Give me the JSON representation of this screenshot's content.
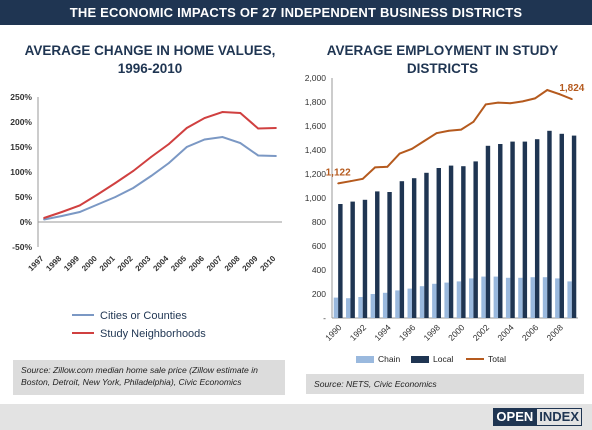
{
  "banner": {
    "title": "THE ECONOMIC IMPACTS OF 27 INDEPENDENT BUSINESS DISTRICTS"
  },
  "left": {
    "title_line1": "AVERAGE CHANGE IN HOME VALUES,",
    "title_line2": "1996-2010",
    "source": "Source: Zillow.com median home sale price (Zillow estimate in Boston, Detroit, New York, Philadelphia), Civic Economics"
  },
  "right": {
    "title_line1": "AVERAGE EMPLOYMENT IN STUDY",
    "title_line2": "DISTRICTS",
    "source": "Source: NETS, Civic Economics"
  },
  "footer": {
    "logo_part1": "OPEN",
    "logo_part2": "INDEX"
  },
  "colors": {
    "navy": "#1f3552",
    "cities_line": "#7b98c4",
    "study_line": "#d04040",
    "chain_bar": "#9ab9de",
    "local_bar": "#1f3552",
    "total_line": "#b55a1e",
    "source_bg": "#dcdcdc"
  },
  "chart_data": [
    {
      "type": "line",
      "title": "AVERAGE CHANGE IN HOME VALUES, 1996-2010",
      "x": [
        "1997",
        "1998",
        "1999",
        "2000",
        "2001",
        "2002",
        "2003",
        "2004",
        "2005",
        "2006",
        "2007",
        "2008",
        "2009",
        "2010"
      ],
      "ylim": [
        -50,
        250
      ],
      "yticks": [
        "-50%",
        "0%",
        "50%",
        "100%",
        "150%",
        "200%",
        "250%"
      ],
      "ytick_values": [
        -50,
        0,
        50,
        100,
        150,
        200,
        250
      ],
      "grid": false,
      "legend_position": "bottom",
      "series": [
        {
          "name": "Cities or Counties",
          "values": [
            5,
            12,
            20,
            35,
            50,
            68,
            92,
            118,
            150,
            165,
            170,
            158,
            133,
            132
          ]
        },
        {
          "name": "Study Neighborhoods",
          "values": [
            8,
            20,
            33,
            55,
            78,
            102,
            130,
            156,
            188,
            208,
            220,
            218,
            187,
            188
          ]
        }
      ]
    },
    {
      "type": "bar",
      "title": "AVERAGE EMPLOYMENT IN STUDY DISTRICTS",
      "x": [
        1990,
        1991,
        1992,
        1993,
        1994,
        1995,
        1996,
        1997,
        1998,
        1999,
        2000,
        2001,
        2002,
        2003,
        2004,
        2005,
        2006,
        2007,
        2008,
        2009
      ],
      "xtick_labels": [
        "1990",
        "1992",
        "1994",
        "1996",
        "1998",
        "2000",
        "2002",
        "2004",
        "2006",
        "2008"
      ],
      "xtick_values": [
        1990,
        1992,
        1994,
        1996,
        1998,
        2000,
        2002,
        2004,
        2006,
        2008
      ],
      "ylim": [
        0,
        2000
      ],
      "yticks": [
        "-",
        "200",
        "400",
        "600",
        "800",
        "1,000",
        "1,200",
        "1,400",
        "1,600",
        "1,800",
        "2,000"
      ],
      "ytick_values": [
        0,
        200,
        400,
        600,
        800,
        1000,
        1200,
        1400,
        1600,
        1800,
        2000
      ],
      "grid": false,
      "legend_position": "bottom",
      "series": [
        {
          "name": "Chain",
          "type": "bar",
          "values": [
            170,
            165,
            175,
            200,
            210,
            230,
            245,
            265,
            285,
            295,
            305,
            330,
            345,
            345,
            335,
            335,
            340,
            340,
            330,
            305
          ]
        },
        {
          "name": "Local",
          "type": "bar",
          "values": [
            950,
            970,
            985,
            1055,
            1050,
            1140,
            1165,
            1210,
            1250,
            1270,
            1265,
            1305,
            1435,
            1450,
            1470,
            1470,
            1490,
            1560,
            1535,
            1520
          ]
        },
        {
          "name": "Total",
          "type": "line",
          "values": [
            1122,
            1140,
            1160,
            1255,
            1260,
            1370,
            1410,
            1475,
            1540,
            1560,
            1570,
            1635,
            1780,
            1795,
            1790,
            1805,
            1830,
            1900,
            1865,
            1824
          ]
        }
      ],
      "data_labels": [
        {
          "series": "Total",
          "x": 1990,
          "label": "1,122"
        },
        {
          "series": "Total",
          "x": 2009,
          "label": "1,824"
        }
      ]
    }
  ]
}
